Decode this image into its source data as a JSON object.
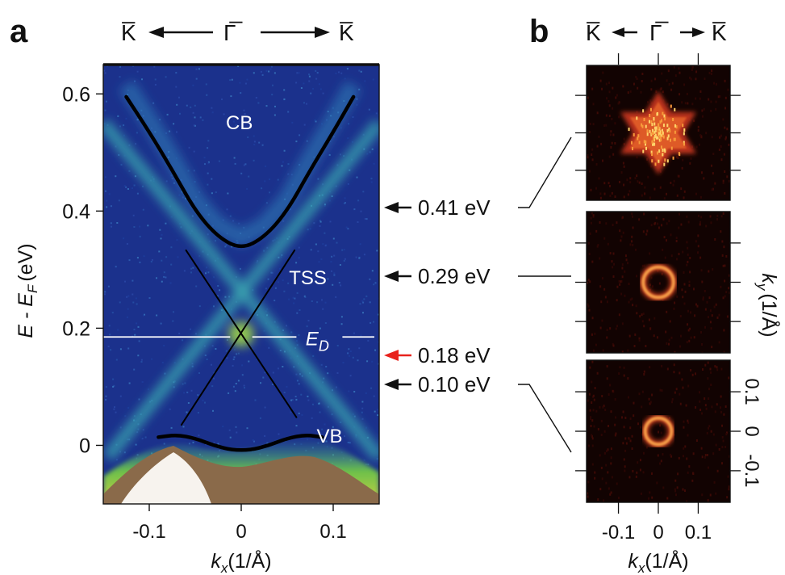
{
  "panel_labels": {
    "a": "a",
    "b": "b"
  },
  "direction_labels": {
    "a": {
      "left": "K̅",
      "center": "Γ̅",
      "right": "K̅"
    },
    "b": {
      "left": "K̅",
      "center": "Γ̅",
      "right": "K̅"
    }
  },
  "colors": {
    "background_dark": "#1a2f8a",
    "band_line": "#000000",
    "dirac_point_marker": "#e8221c",
    "arrow": "#111111"
  },
  "chart_data": [
    {
      "type": "heatmap",
      "panel": "a",
      "title": "",
      "xlabel": "k_x (1/Å)",
      "xlabel_main": "k",
      "xlabel_sub": "x",
      "xlabel_unit": "(1/Å)",
      "ylabel": "E - E_F (eV)",
      "ylabel_main": "E - E",
      "ylabel_sub": "F",
      "ylabel_unit": "(eV)",
      "xlim": [
        -0.15,
        0.15
      ],
      "ylim": [
        -0.1,
        0.65
      ],
      "xticks": [
        -0.1,
        0,
        0.1
      ],
      "xtick_labels": [
        "-0.1",
        "0",
        "0.1"
      ],
      "yticks": [
        0,
        0.2,
        0.4,
        0.6
      ],
      "ytick_labels": [
        "0",
        "0.2",
        "0.4",
        "0.6"
      ],
      "colormap": "viridis-like (blue to yellow-green), saturated brown/white at high intensity",
      "bands": [
        {
          "name": "CB",
          "label": "CB",
          "label_pos": [
            -0.002,
            0.54
          ],
          "style": "thick",
          "x": [
            -0.125,
            -0.1,
            -0.075,
            -0.05,
            -0.025,
            0,
            0.025,
            0.05,
            0.075,
            0.1,
            0.122
          ],
          "y": [
            0.595,
            0.535,
            0.47,
            0.4,
            0.355,
            0.335,
            0.355,
            0.4,
            0.47,
            0.535,
            0.595
          ]
        },
        {
          "name": "TSS left-to-right",
          "label": "",
          "style": "thin",
          "x": [
            -0.065,
            0.058
          ],
          "y": [
            0.035,
            0.333
          ]
        },
        {
          "name": "TSS right-to-left",
          "label": "TSS",
          "label_pos": [
            0.052,
            0.275
          ],
          "style": "thin",
          "x": [
            -0.06,
            0.06
          ],
          "y": [
            0.333,
            0.048
          ]
        },
        {
          "name": "VB",
          "label": "VB",
          "label_pos": [
            0.082,
            0.005
          ],
          "style": "thick",
          "x": [
            -0.09,
            -0.07,
            -0.05,
            -0.03,
            -0.01,
            0.01,
            0.03,
            0.05,
            0.07,
            0.088
          ],
          "y": [
            0.014,
            0.018,
            0.012,
            0.0,
            -0.008,
            -0.008,
            0.0,
            0.012,
            0.018,
            0.014
          ]
        }
      ],
      "dirac_point": {
        "label_main": "E",
        "label_sub": "D",
        "energy": 0.185,
        "x": -0.002
      },
      "energy_cuts": [
        {
          "label": "0.41 eV",
          "energy": 0.41,
          "color": "#111111"
        },
        {
          "label": "0.29 eV",
          "energy": 0.29,
          "color": "#111111"
        },
        {
          "label": "0.18 eV",
          "energy": 0.18,
          "color": "#e8221c"
        },
        {
          "label": "0.10 eV",
          "energy": 0.1,
          "color": "#111111"
        }
      ]
    },
    {
      "type": "heatmap",
      "panel": "b",
      "title": "",
      "description": "constant energy maps at 0.41, 0.29 and 0.10 eV",
      "xlabel": "k_x (1/Å)",
      "xlabel_main": "k",
      "xlabel_sub": "x",
      "xlabel_unit": "(1/Å)",
      "ylabel": "k_y (1/Å)",
      "ylabel_main": "k",
      "ylabel_sub": "y",
      "ylabel_unit": "(1/Å)",
      "xlim": [
        -0.18,
        0.18
      ],
      "ylim": [
        -0.18,
        0.18
      ],
      "xticks": [
        -0.1,
        0,
        0.1
      ],
      "xtick_labels": [
        "-0.1",
        "0",
        "0.1"
      ],
      "yticks": [
        -0.1,
        0,
        0.1
      ],
      "ytick_labels": [
        "-0.1",
        "0",
        "0.1"
      ],
      "colormap": "black-red-yellow (hot)",
      "maps": [
        {
          "energy_label": "0.41 eV",
          "shape": "hexagram",
          "radius": 0.11
        },
        {
          "energy_label": "0.29 eV",
          "shape": "ring",
          "radius": 0.038
        },
        {
          "energy_label": "0.10 eV",
          "shape": "ring",
          "radius": 0.033
        }
      ]
    }
  ]
}
